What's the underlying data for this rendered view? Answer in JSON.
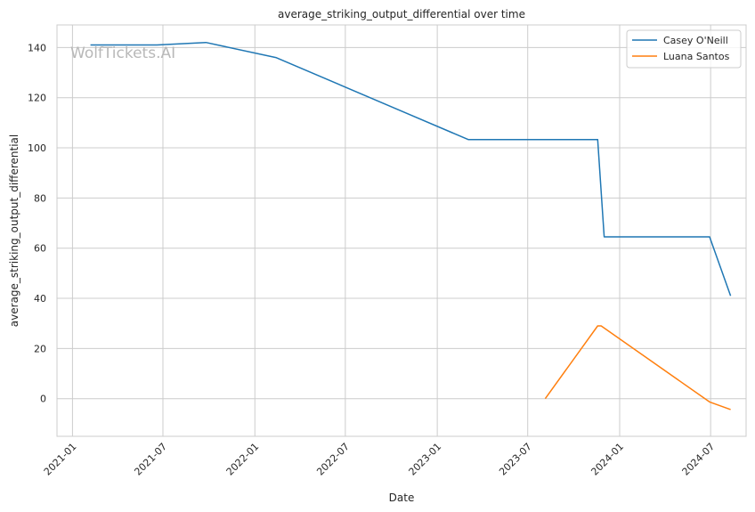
{
  "chart_data": {
    "type": "line",
    "title": "average_striking_output_differential over time",
    "xlabel": "Date",
    "ylabel": "average_striking_output_differential",
    "watermark": "WolfTickets.AI",
    "xlim": [
      "2020-12-01",
      "2024-09-10"
    ],
    "ylim": [
      -15,
      149
    ],
    "x_ticks": [
      "2021-01",
      "2021-07",
      "2022-01",
      "2022-07",
      "2023-01",
      "2023-07",
      "2024-01",
      "2024-07"
    ],
    "y_ticks": [
      0,
      20,
      40,
      60,
      80,
      100,
      120,
      140
    ],
    "grid": true,
    "legend_position": "top-right",
    "series": [
      {
        "name": "Casey O'Neill",
        "color": "#1f77b4",
        "points": [
          {
            "x": "2021-02-06",
            "y": 141
          },
          {
            "x": "2021-06-19",
            "y": 141
          },
          {
            "x": "2021-09-25",
            "y": 142
          },
          {
            "x": "2022-02-12",
            "y": 136
          },
          {
            "x": "2023-03-04",
            "y": 103.3
          },
          {
            "x": "2023-11-18",
            "y": 103.3
          },
          {
            "x": "2023-12-01",
            "y": 64.5
          },
          {
            "x": "2024-06-29",
            "y": 64.5
          },
          {
            "x": "2024-08-10",
            "y": 41
          }
        ]
      },
      {
        "name": "Luana Santos",
        "color": "#ff7f0e",
        "points": [
          {
            "x": "2023-08-05",
            "y": 0
          },
          {
            "x": "2023-11-18",
            "y": 29
          },
          {
            "x": "2023-11-25",
            "y": 29
          },
          {
            "x": "2024-06-29",
            "y": -1.3
          },
          {
            "x": "2024-08-10",
            "y": -4.3
          }
        ]
      }
    ]
  }
}
